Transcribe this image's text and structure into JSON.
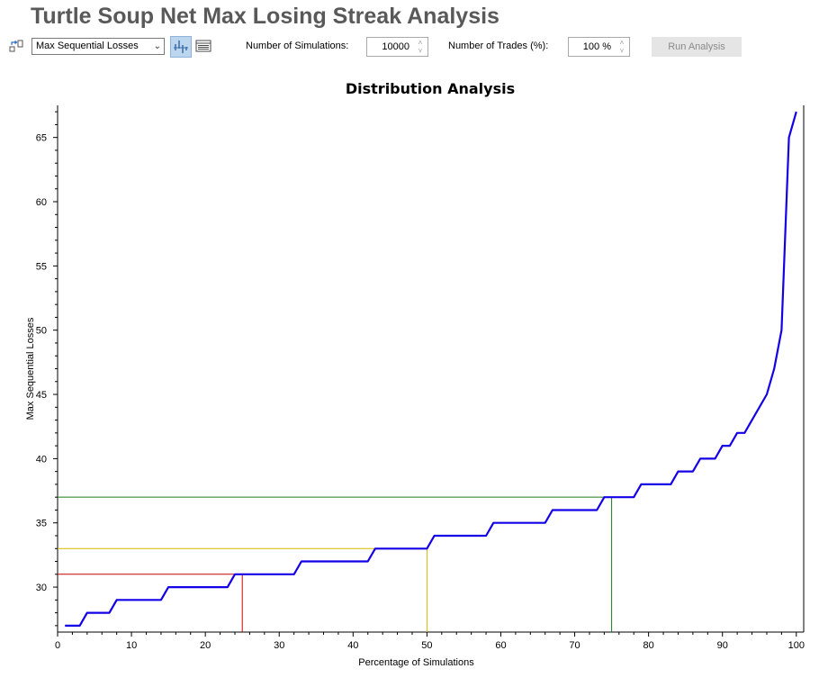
{
  "app": {
    "title": "Turtle Soup Net Max Losing Streak Analysis"
  },
  "toolbar": {
    "metric_select_value": "Max Sequential Losses",
    "simulations_label": "Number of Simulations:",
    "simulations_value": "10000",
    "trades_label": "Number of Trades (%):",
    "trades_value": "100 %",
    "run_button_label": "Run Analysis",
    "icons": [
      "swap-view-icon",
      "chevron-down-icon",
      "histogram-icon",
      "table-view-icon",
      "spinner-arrows-icon"
    ]
  },
  "chart_data": {
    "type": "line",
    "title": "Distribution Analysis",
    "xlabel": "Percentage of Simulations",
    "ylabel": "Max Sequential Losses",
    "xlim": [
      0,
      101
    ],
    "ylim": [
      26.5,
      67.5
    ],
    "xticks": [
      0,
      10,
      20,
      30,
      40,
      50,
      60,
      70,
      80,
      90,
      100
    ],
    "yticks": [
      30,
      35,
      40,
      45,
      50,
      55,
      60,
      65
    ],
    "series": [
      {
        "color": "#1400e6",
        "x": [
          1,
          3,
          4,
          7,
          8,
          14,
          15,
          23,
          24,
          32,
          33,
          42,
          43,
          50,
          51,
          58,
          59,
          66,
          67,
          73,
          74,
          78,
          79,
          83,
          84,
          86,
          87,
          89,
          90,
          91,
          92,
          93,
          96,
          97,
          98,
          99,
          100
        ],
        "y": [
          27,
          27,
          28,
          28,
          29,
          29,
          30,
          30,
          31,
          31,
          32,
          32,
          33,
          33,
          34,
          34,
          35,
          35,
          36,
          36,
          37,
          37,
          38,
          38,
          39,
          39,
          40,
          40,
          41,
          41,
          42,
          42,
          45,
          47,
          50,
          65,
          67
        ]
      }
    ],
    "reference_lines": [
      {
        "percentile": 25,
        "value": 31,
        "color": "#cc0000"
      },
      {
        "percentile": 50,
        "value": 33,
        "color": "#d4b800"
      },
      {
        "percentile": 75,
        "value": 37,
        "color": "#1a7a1a"
      }
    ]
  }
}
